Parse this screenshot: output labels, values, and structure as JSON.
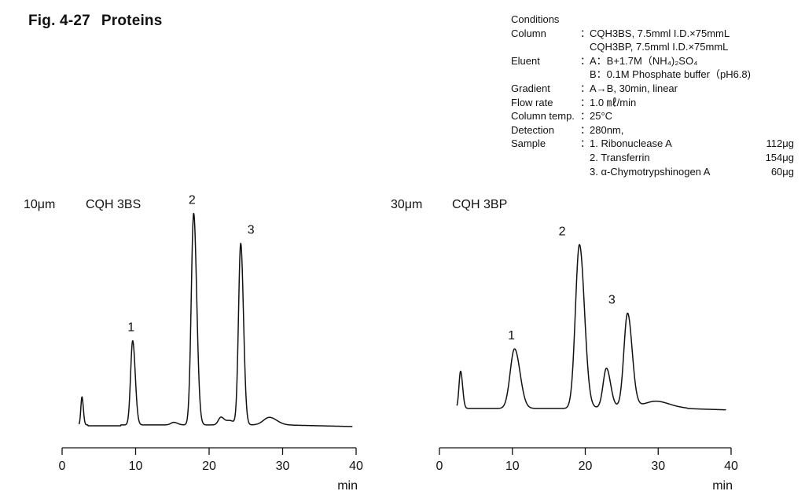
{
  "figure": {
    "number": "Fig. 4-27",
    "title": "Proteins"
  },
  "conditions": {
    "heading": "Conditions",
    "rows": [
      {
        "key": "Column",
        "colon": "：",
        "value": "CQH3BS, 7.5mml I.D.×75mmL"
      },
      {
        "key": "",
        "colon": "",
        "value": "CQH3BP, 7.5mml I.D.×75mmL"
      },
      {
        "key": "Eluent",
        "colon": "：",
        "value": "A：B+1.7M（NH₄)₂SO₄"
      },
      {
        "key": "",
        "colon": "",
        "value": "B：0.1M Phosphate buffer（pH6.8)"
      },
      {
        "key": "Gradient",
        "colon": "：",
        "value": "A→B, 30min, linear"
      },
      {
        "key": "Flow rate",
        "colon": "：",
        "value": "1.0 ㎖/min"
      },
      {
        "key": "Column temp.",
        "colon": "：",
        "value": "25°C"
      },
      {
        "key": "Detection",
        "colon": "：",
        "value": "280nm,"
      },
      {
        "key": "Sample",
        "colon": "：",
        "value": "1. Ribonuclease A",
        "amount": "112μg"
      },
      {
        "key": "",
        "colon": "",
        "value": "2. Transferrin",
        "amount": "154μg"
      },
      {
        "key": "",
        "colon": "",
        "value": "3. α-Chymotrypshinogen A",
        "amount": "60μg"
      }
    ]
  },
  "colors": {
    "trace": "#111111",
    "axis": "#111111",
    "text": "#111111",
    "background": "#ffffff"
  },
  "chart_data": [
    {
      "type": "line",
      "particle_size": "10μm",
      "column": "CQH 3BS",
      "xlabel": "min",
      "xlim": [
        0,
        40
      ],
      "xticks": [
        0,
        10,
        20,
        30,
        40
      ],
      "baseline": 0.015,
      "peaks": [
        {
          "t": 2.7,
          "h": 0.13,
          "w": 0.15
        },
        {
          "t": 9.6,
          "h": 0.39,
          "w": 0.28,
          "label": "1"
        },
        {
          "t": 17.9,
          "h": 0.98,
          "w": 0.33,
          "label": "2"
        },
        {
          "t": 24.3,
          "h": 0.84,
          "w": 0.3,
          "label": "3"
        },
        {
          "t": 15.2,
          "h": 0.012,
          "w": 0.4
        },
        {
          "t": 21.6,
          "h": 0.035,
          "w": 0.35
        },
        {
          "t": 22.8,
          "h": 0.02,
          "w": 0.5
        },
        {
          "t": 28.2,
          "h": 0.035,
          "w": 0.8
        }
      ]
    },
    {
      "type": "line",
      "particle_size": "30μm",
      "column": "CQH 3BP",
      "xlabel": "min",
      "xlim": [
        0,
        40
      ],
      "xticks": [
        0,
        10,
        20,
        30,
        40
      ],
      "baseline": 0.03,
      "peaks": [
        {
          "t": 2.9,
          "h": 0.2,
          "w": 0.22
        },
        {
          "t": 10.3,
          "h": 0.32,
          "w": 0.6,
          "label": "1"
        },
        {
          "t": 19.2,
          "h": 0.88,
          "w": 0.55,
          "label": "2"
        },
        {
          "t": 22.9,
          "h": 0.21,
          "w": 0.45
        },
        {
          "t": 25.8,
          "h": 0.5,
          "w": 0.5,
          "label": "3"
        },
        {
          "t": 29.8,
          "h": 0.03,
          "w": 1.4
        }
      ]
    }
  ]
}
